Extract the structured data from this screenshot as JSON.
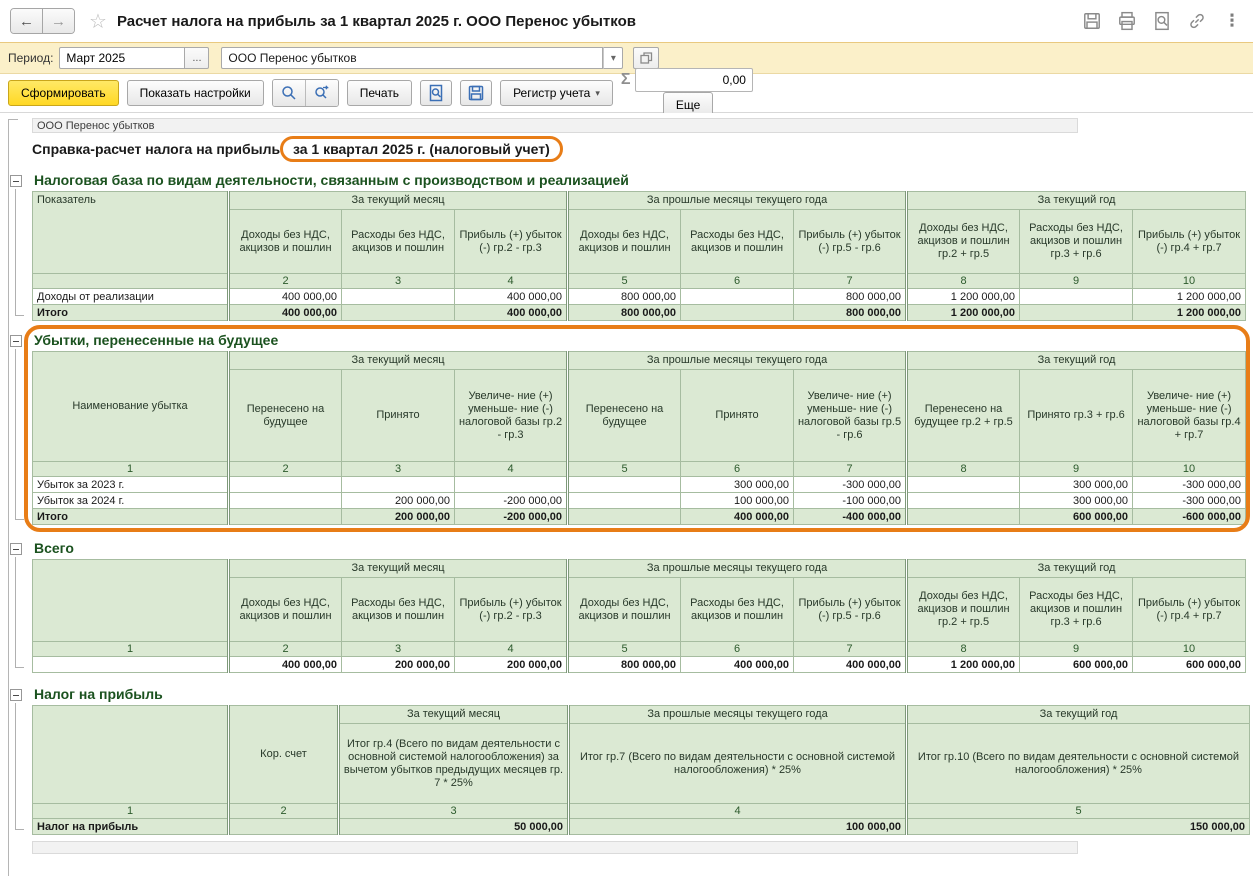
{
  "chrome": {
    "title": "Расчет налога на прибыль за 1 квартал 2025 г. ООО Перенос убытков",
    "back": "←",
    "forward": "→",
    "star": "☆",
    "kebab": "⋮"
  },
  "period_bar": {
    "label": "Период:",
    "period_value": "Март 2025",
    "ellipsis": "...",
    "organization": "ООО Перенос убытков",
    "caret": "▾"
  },
  "toolbar": {
    "generate": "Сформировать",
    "settings": "Показать настройки",
    "print": "Печать",
    "register": "Регистр учета",
    "register_caret": "▾",
    "sigma": "Σ",
    "sum_value": "0,00",
    "more": "Еще"
  },
  "report": {
    "org_line": "ООО Перенос убытков",
    "title": "Справка-расчет налога на прибыль",
    "title_period": "за 1 квартал 2025 г. (налоговый учет)"
  },
  "tables": [
    {
      "id": "tax-base",
      "section_title": "Налоговая база по видам деятельности, связанным с производством и реализацией",
      "corner_header": "Показатель",
      "corner_align": "top",
      "groups": [
        "За текущий месяц",
        "За прошлые месяцы текущего года",
        "За текущий год"
      ],
      "sub_headers": [
        "Доходы без НДС, акцизов и пошлин",
        "Расходы без НДС, акцизов и пошлин",
        "Прибыль (+) убыток (-) гр.2 - гр.3",
        "Доходы без НДС, акцизов и пошлин",
        "Расходы без НДС, акцизов и пошлин",
        "Прибыль (+) убыток (-) гр.5 - гр.6",
        "Доходы без НДС, акцизов и пошлин гр.2 + гр.5",
        "Расходы без НДС, акцизов и пошлин гр.3 + гр.6",
        "Прибыль (+) убыток (-) гр.4 + гр.7"
      ],
      "sub_height": 64,
      "number_row": [
        "",
        "2",
        "3",
        "4",
        "5",
        "6",
        "7",
        "8",
        "9",
        "10"
      ],
      "rows": [
        {
          "label": "Доходы от реализации",
          "bold": false,
          "total": false,
          "values": [
            "400 000,00",
            "",
            "400 000,00",
            "800 000,00",
            "",
            "800 000,00",
            "1 200 000,00",
            "",
            "1 200 000,00"
          ]
        },
        {
          "label": "Итого",
          "bold": true,
          "total": true,
          "values": [
            "400 000,00",
            "",
            "400 000,00",
            "800 000,00",
            "",
            "800 000,00",
            "1 200 000,00",
            "",
            "1 200 000,00"
          ]
        }
      ]
    },
    {
      "id": "losses",
      "section_title": "Убытки, перенесенные на будущее",
      "corner_header": "Наименование убытка",
      "corner_align": "middle",
      "groups": [
        "За текущий месяц",
        "За прошлые месяцы текущего года",
        "За текущий год"
      ],
      "sub_headers": [
        "Перенесено на будущее",
        "Принято",
        "Увеличе- ние (+) уменьше- ние (-) налоговой базы гр.2 - гр.3",
        "Перенесено на будущее",
        "Принято",
        "Увеличе- ние (+) уменьше- ние (-) налоговой базы гр.5 - гр.6",
        "Перенесено на будущее гр.2 + гр.5",
        "Принято гр.3 + гр.6",
        "Увеличе- ние (+) уменьше- ние (-) налоговой базы гр.4 + гр.7"
      ],
      "sub_height": 92,
      "number_row": [
        "1",
        "2",
        "3",
        "4",
        "5",
        "6",
        "7",
        "8",
        "9",
        "10"
      ],
      "rows": [
        {
          "label": "Убыток за 2023 г.",
          "bold": false,
          "total": false,
          "values": [
            "",
            "",
            "",
            "",
            "300 000,00",
            "-300 000,00",
            "",
            "300 000,00",
            "-300 000,00"
          ]
        },
        {
          "label": "Убыток за 2024 г.",
          "bold": false,
          "total": false,
          "values": [
            "",
            "200 000,00",
            "-200 000,00",
            "",
            "100 000,00",
            "-100 000,00",
            "",
            "300 000,00",
            "-300 000,00"
          ]
        },
        {
          "label": "Итого",
          "bold": true,
          "total": true,
          "values": [
            "",
            "200 000,00",
            "-200 000,00",
            "",
            "400 000,00",
            "-400 000,00",
            "",
            "600 000,00",
            "-600 000,00"
          ]
        }
      ]
    },
    {
      "id": "total",
      "section_title": "Всего",
      "corner_header": "",
      "corner_align": "middle",
      "groups": [
        "За текущий месяц",
        "За прошлые месяцы текущего года",
        "За текущий год"
      ],
      "sub_headers": [
        "Доходы без НДС, акцизов и пошлин",
        "Расходы без НДС, акцизов и пошлин",
        "Прибыль (+) убыток (-) гр.2 - гр.3",
        "Доходы без НДС, акцизов и пошлин",
        "Расходы без НДС, акцизов и пошлин",
        "Прибыль (+) убыток (-) гр.5 - гр.6",
        "Доходы без НДС, акцизов и пошлин гр.2 + гр.5",
        "Расходы без НДС, акцизов и пошлин гр.3 + гр.6",
        "Прибыль (+) убыток (-) гр.4 + гр.7"
      ],
      "sub_height": 64,
      "number_row": [
        "1",
        "2",
        "3",
        "4",
        "5",
        "6",
        "7",
        "8",
        "9",
        "10"
      ],
      "rows": [
        {
          "label": "",
          "bold": true,
          "total": false,
          "values": [
            "400 000,00",
            "200 000,00",
            "200 000,00",
            "800 000,00",
            "400 000,00",
            "400 000,00",
            "1 200 000,00",
            "600 000,00",
            "600 000,00"
          ]
        }
      ]
    },
    {
      "id": "income-tax",
      "section_title": "Налог на прибыль",
      "corner_header": "",
      "corner_align": "middle",
      "col2_header": "Кор. счет",
      "groups": [
        "За текущий месяц",
        "За прошлые месяцы текущего года",
        "За текущий год"
      ],
      "sub_headers": [
        "Итог гр.4 (Всего по видам деятельности с основной системой налогообложения) за вычетом убытков предыдущих месяцев гр. 7 * 25%",
        "Итог гр.7 (Всего по видам деятельности с основной системой налогообложения) * 25%",
        "Итог гр.10 (Всего по видам деятельности с основной системой налогообложения) * 25%"
      ],
      "sub_height": 80,
      "number_row": [
        "1",
        "2",
        "3",
        "4",
        "5"
      ],
      "rows": [
        {
          "label": "Налог на прибыль",
          "bold": true,
          "total": true,
          "values": [
            "",
            "50 000,00",
            "100 000,00",
            "150 000,00"
          ]
        }
      ]
    }
  ]
}
